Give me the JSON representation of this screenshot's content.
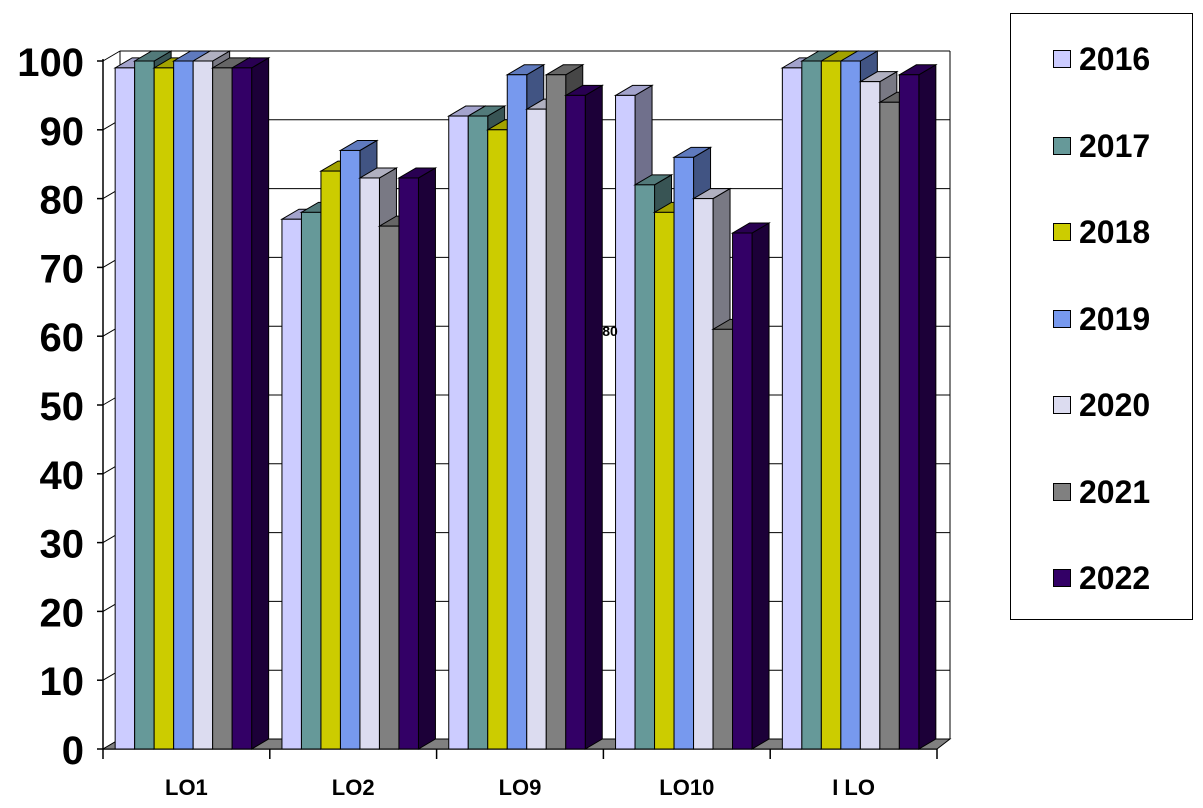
{
  "chart_data": {
    "type": "bar",
    "categories": [
      "LO1",
      "LO2",
      "LO9",
      "LO10",
      "I LO"
    ],
    "series": [
      {
        "name": "2016",
        "color": "#ccccff",
        "values": [
          99,
          77,
          92,
          95,
          99
        ]
      },
      {
        "name": "2017",
        "color": "#669999",
        "values": [
          100,
          78,
          92,
          82,
          100
        ]
      },
      {
        "name": "2018",
        "color": "#cccc00",
        "values": [
          99,
          84,
          90,
          78,
          100
        ]
      },
      {
        "name": "2019",
        "color": "#7799ee",
        "values": [
          100,
          87,
          98,
          86,
          100
        ]
      },
      {
        "name": "2020",
        "color": "#dcdcf0",
        "values": [
          100,
          83,
          93,
          80,
          97
        ]
      },
      {
        "name": "2021",
        "color": "#808080",
        "values": [
          99,
          76,
          98,
          61,
          94
        ]
      },
      {
        "name": "2022",
        "color": "#330066",
        "values": [
          99,
          83,
          95,
          75,
          98
        ]
      }
    ],
    "yticks": [
      0,
      10,
      20,
      30,
      40,
      50,
      60,
      70,
      80,
      90,
      100
    ],
    "ylim": [
      0,
      100
    ],
    "annotations": [
      {
        "text": "80"
      }
    ],
    "grid": true,
    "legend": "right"
  }
}
